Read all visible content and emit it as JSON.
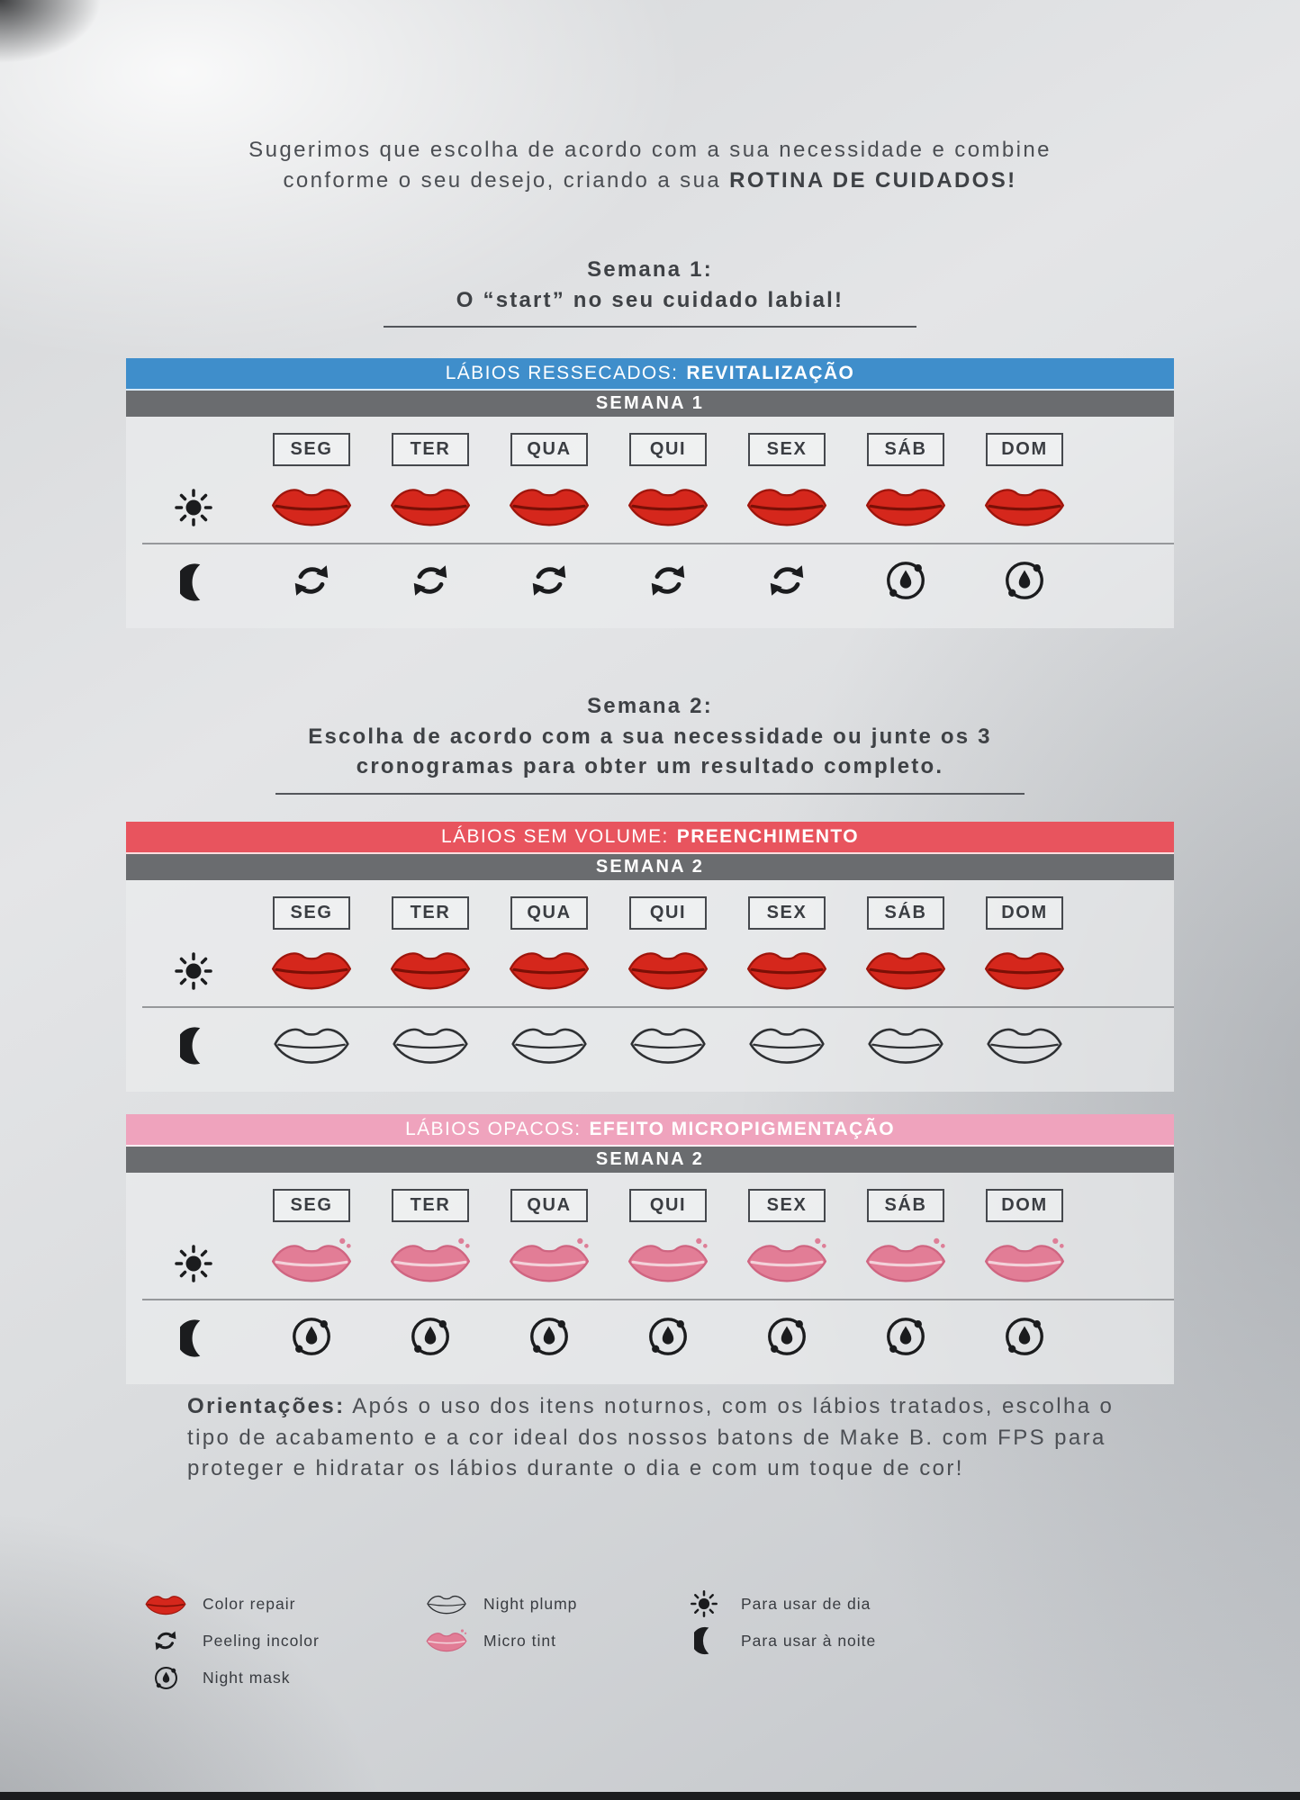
{
  "intro": {
    "line1": "Sugerimos que escolha de acordo com a sua necessidade e combine",
    "line2": "conforme o seu desejo, criando a sua",
    "line2_bold": "ROTINA DE CUIDADOS!"
  },
  "week1_heading": {
    "title": "Semana 1:",
    "subtitle": "O “start” no seu cuidado labial!"
  },
  "week2_heading": {
    "title": "Semana 2:",
    "subtitle_line1": "Escolha de acordo com a sua necessidade ou junte os 3",
    "subtitle_line2": "cronogramas para obter um resultado completo."
  },
  "days": [
    "SEG",
    "TER",
    "QUA",
    "QUI",
    "SEX",
    "SÁB",
    "DOM"
  ],
  "tables": [
    {
      "condition": "LÁBIOS RESSECADOS:",
      "treatment": "REVITALIZAÇÃO",
      "header_color": "#3f8ecb",
      "week_label": "SEMANA 1",
      "day_icons": [
        "color-repair",
        "color-repair",
        "color-repair",
        "color-repair",
        "color-repair",
        "color-repair",
        "color-repair"
      ],
      "night_icons": [
        "peeling",
        "peeling",
        "peeling",
        "peeling",
        "peeling",
        "night-mask",
        "night-mask"
      ]
    },
    {
      "condition": "LÁBIOS SEM VOLUME:",
      "treatment": "PREENCHIMENTO",
      "header_color": "#e8545e",
      "week_label": "SEMANA 2",
      "day_icons": [
        "color-repair",
        "color-repair",
        "color-repair",
        "color-repair",
        "color-repair",
        "color-repair",
        "color-repair"
      ],
      "night_icons": [
        "night-plump",
        "night-plump",
        "night-plump",
        "night-plump",
        "night-plump",
        "night-plump",
        "night-plump"
      ]
    },
    {
      "condition": "LÁBIOS OPACOS:",
      "treatment": "EFEITO MICROPIGMENTAÇÃO",
      "header_color": "#efa3bd",
      "week_label": "SEMANA 2",
      "day_icons": [
        "micro-tint",
        "micro-tint",
        "micro-tint",
        "micro-tint",
        "micro-tint",
        "micro-tint",
        "micro-tint"
      ],
      "night_icons": [
        "night-mask",
        "night-mask",
        "night-mask",
        "night-mask",
        "night-mask",
        "night-mask",
        "night-mask"
      ]
    }
  ],
  "guidance": {
    "label": "Orientações:",
    "text": " Após o uso dos itens noturnos, com os lábios tratados, escolha o tipo de acabamento e a cor ideal dos nossos batons de Make B. com FPS para proteger e hidratar os lábios durante o dia e com um toque de cor!"
  },
  "legend": {
    "columns": [
      [
        {
          "icon": "color-repair",
          "label": "Color repair"
        },
        {
          "icon": "peeling",
          "label": "Peeling incolor"
        },
        {
          "icon": "night-mask",
          "label": "Night mask"
        }
      ],
      [
        {
          "icon": "night-plump",
          "label": "Night plump"
        },
        {
          "icon": "micro-tint",
          "label": "Micro tint"
        }
      ],
      [
        {
          "icon": "sun",
          "label": "Para usar de dia"
        },
        {
          "icon": "moon",
          "label": "Para usar à noite"
        }
      ]
    ]
  },
  "colors": {
    "table1_header": "#3f8ecb",
    "table2_header": "#e8545e",
    "table3_header": "#efa3bd",
    "week_bar": "#6a6c6f",
    "lips_red": "#d5271c",
    "lips_pink": "#e27d96",
    "icon_black": "#1b1c1e"
  }
}
